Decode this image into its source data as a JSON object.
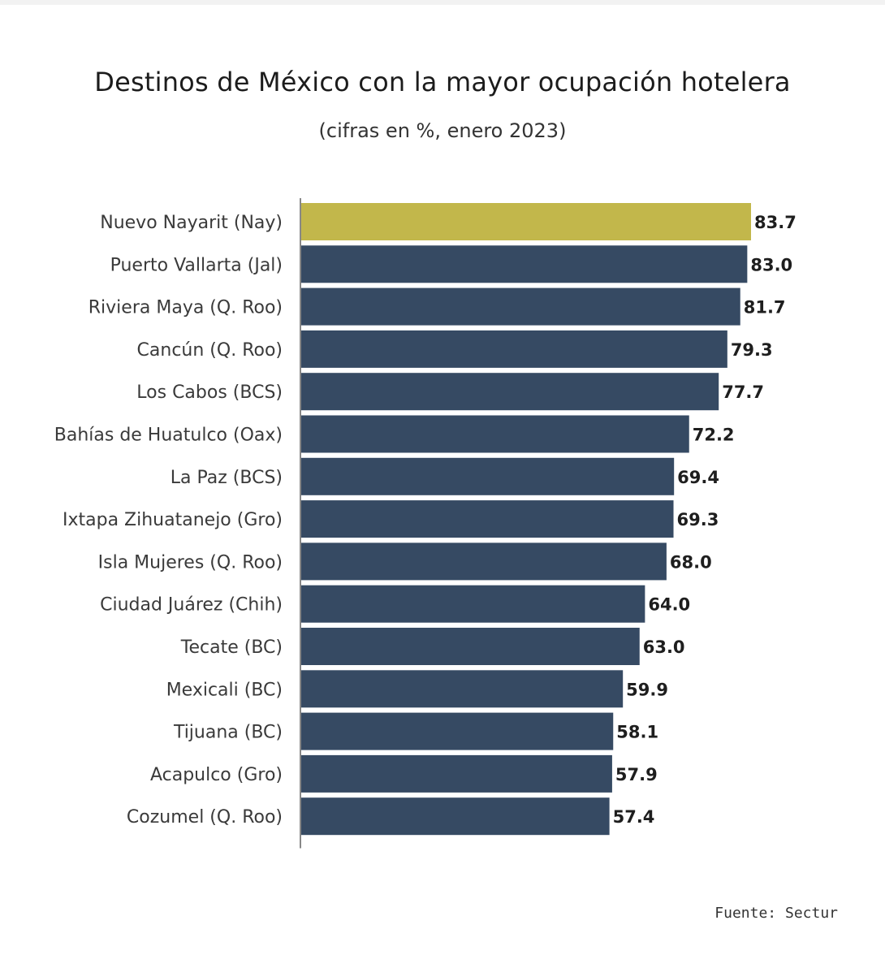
{
  "chart_data": {
    "type": "bar",
    "orientation": "horizontal",
    "title": "Destinos de México con la mayor ocupación hotelera",
    "subtitle": "(cifras en %, enero 2023)",
    "categories": [
      "Nuevo Nayarit (Nay)",
      "Puerto Vallarta (Jal)",
      "Riviera Maya (Q. Roo)",
      "Cancún (Q. Roo)",
      "Los Cabos (BCS)",
      "Bahías de Huatulco (Oax)",
      "La Paz (BCS)",
      "Ixtapa Zihuatanejo (Gro)",
      "Isla Mujeres (Q. Roo)",
      "Ciudad Juárez (Chih)",
      "Tecate (BC)",
      "Mexicali (BC)",
      "Tijuana (BC)",
      "Acapulco (Gro)",
      "Cozumel (Q. Roo)"
    ],
    "values": [
      83.7,
      83.0,
      81.7,
      79.3,
      77.7,
      72.2,
      69.4,
      69.3,
      68.0,
      64.0,
      63.0,
      59.9,
      58.1,
      57.9,
      57.4
    ],
    "value_labels": [
      "83.7",
      "83.0",
      "81.7",
      "79.3",
      "77.7",
      "72.2",
      "69.4",
      "69.3",
      "68.0",
      "64.0",
      "63.0",
      "59.9",
      "58.1",
      "57.9",
      "57.4"
    ],
    "xlim": [
      0,
      83.7
    ],
    "grid": false,
    "colors": {
      "highlight": "#c2b74b",
      "default": "#364a63"
    },
    "highlight_index": 0,
    "source": "Fuente: Sectur"
  }
}
